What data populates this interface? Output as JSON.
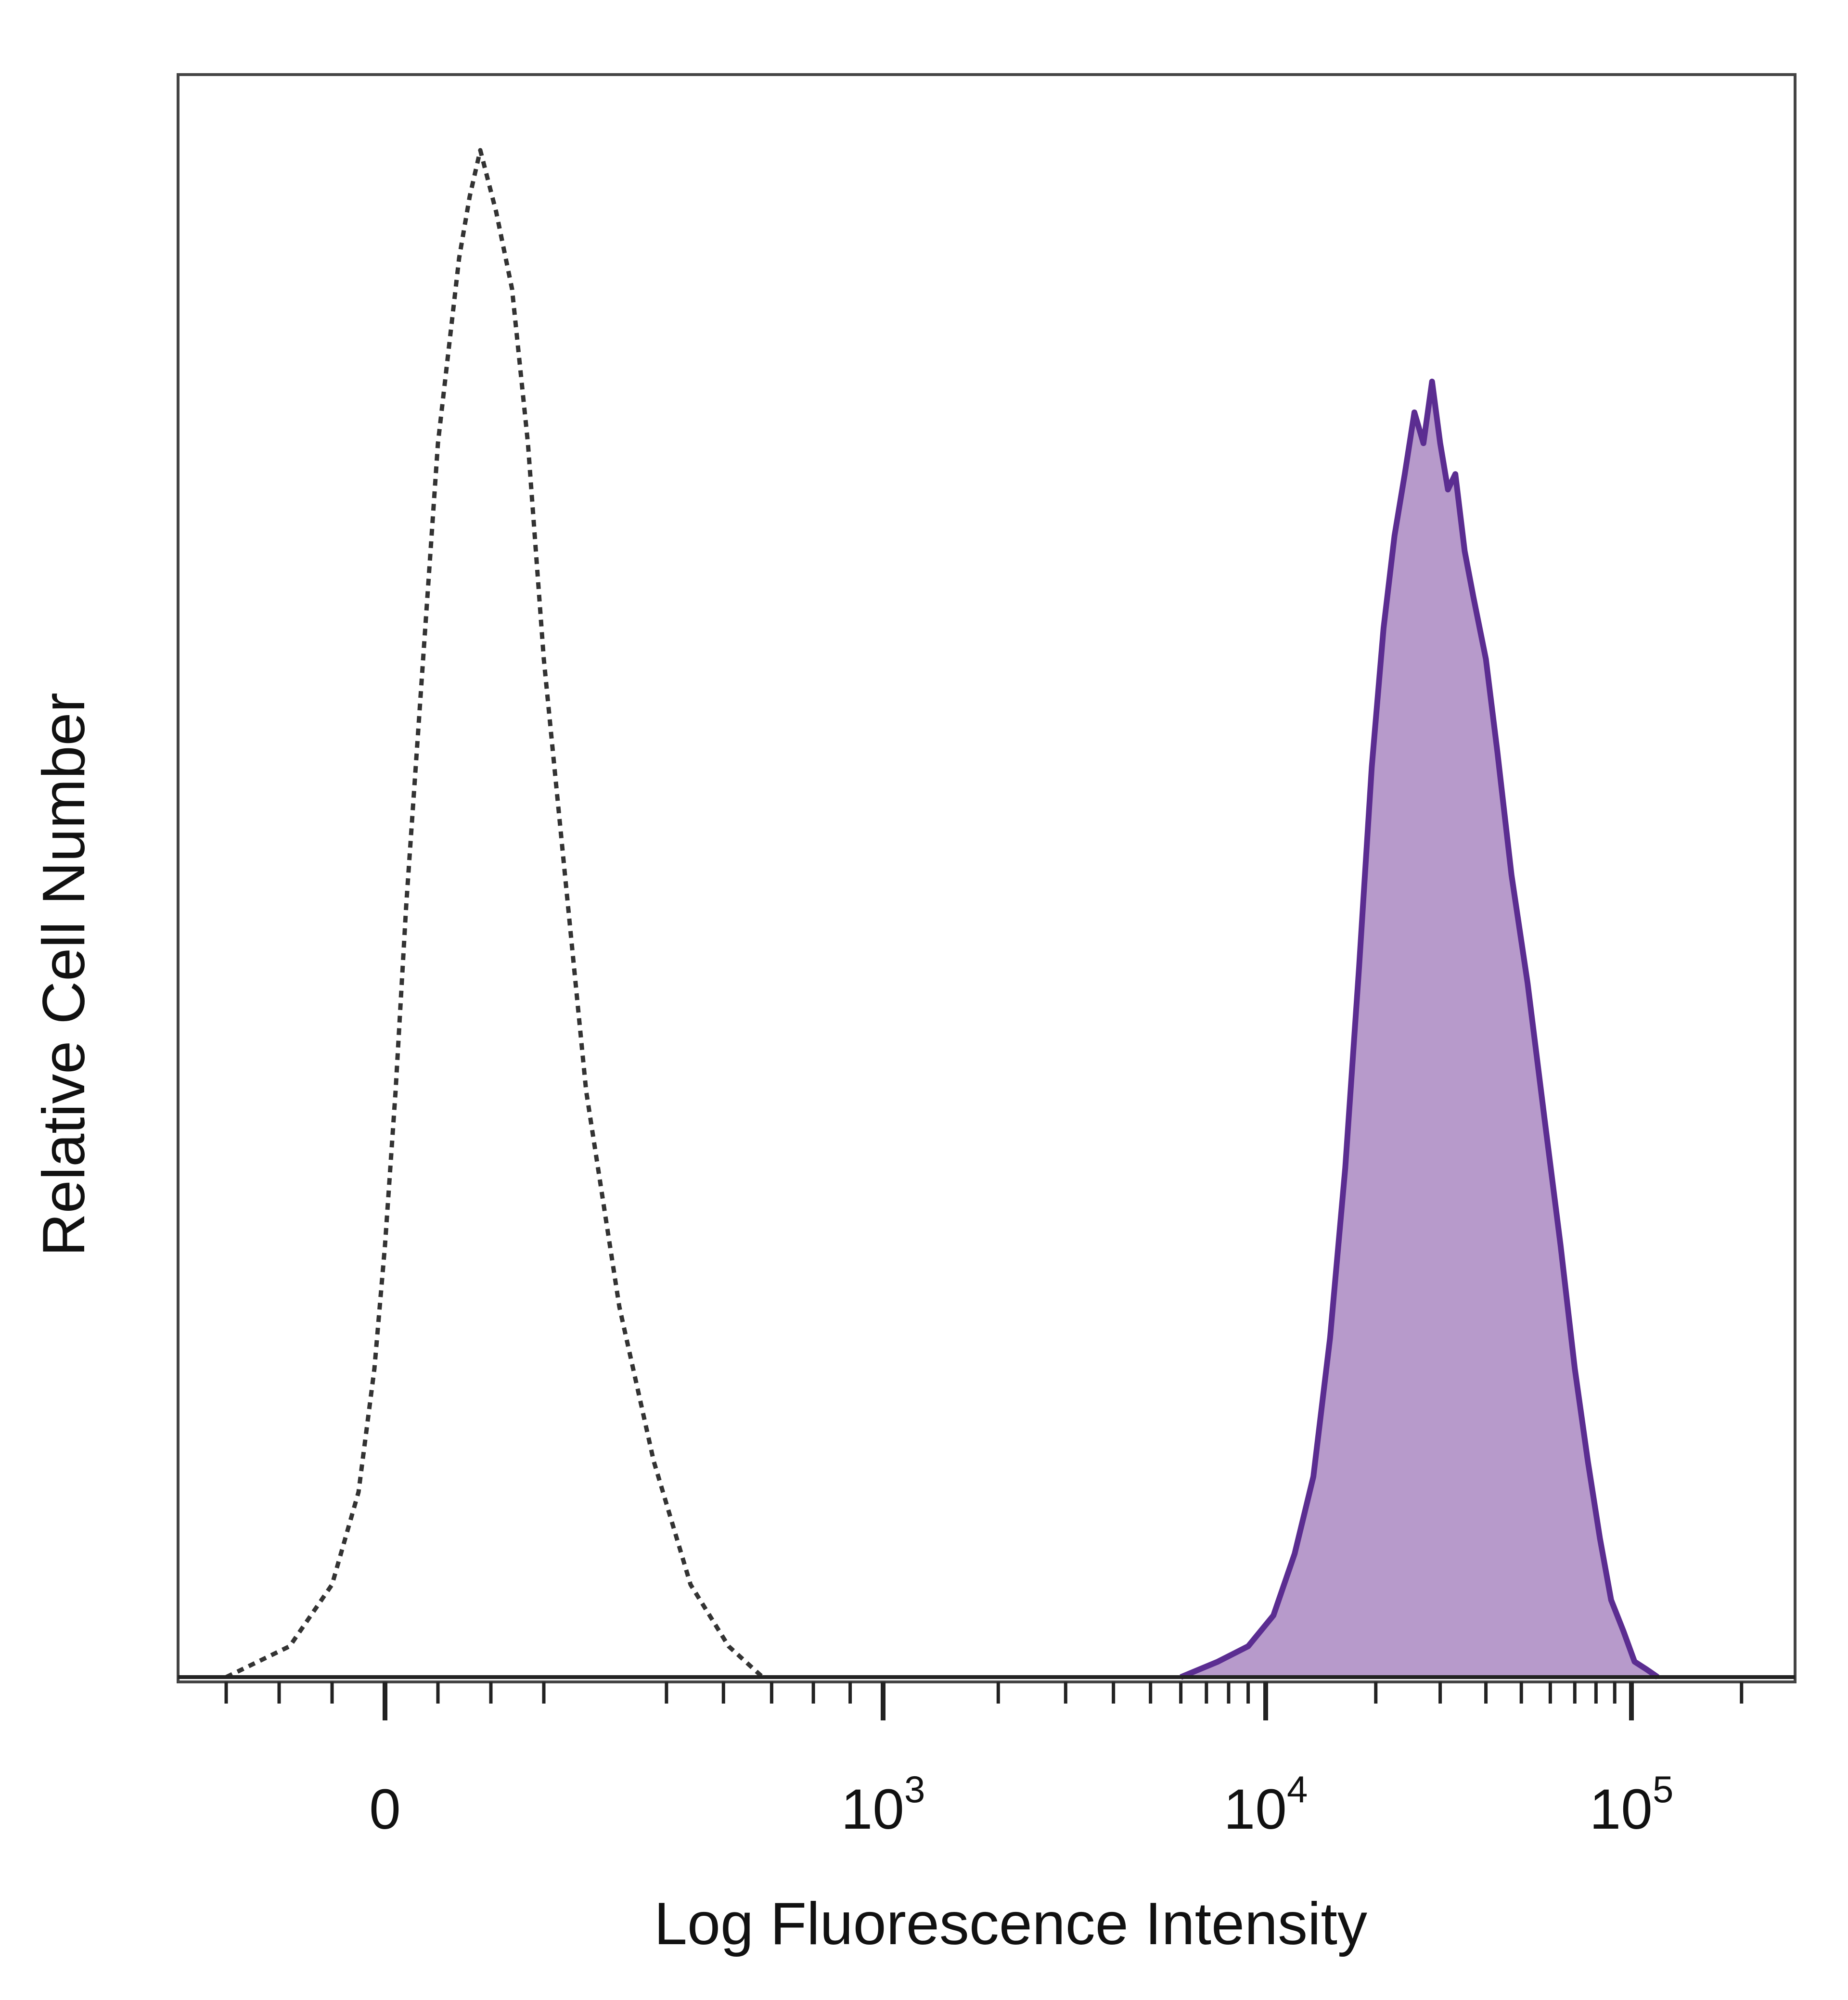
{
  "chart_data": {
    "type": "area",
    "title": "",
    "xlabel": "Log Fluorescence Intensity",
    "ylabel": "Relative Cell Number",
    "x_scale": "biexponential",
    "x_ticks": [
      {
        "value": 0,
        "base": "0",
        "exp": ""
      },
      {
        "value": 1000,
        "base": "10",
        "exp": "3"
      },
      {
        "value": 10000,
        "base": "10",
        "exp": "4"
      },
      {
        "value": 100000,
        "base": "10",
        "exp": "5"
      }
    ],
    "ylim": [
      0,
      100
    ],
    "grid": false,
    "legend": "none",
    "series": [
      {
        "style": "dotted-outline",
        "color": "#333333",
        "x": [
          -300,
          -180,
          -100,
          -50,
          -20,
          0,
          20,
          40,
          60,
          80,
          100,
          120,
          140,
          160,
          180,
          210,
          240,
          270,
          300,
          340,
          380,
          430,
          480,
          540,
          610,
          680
        ],
        "y": [
          0,
          2,
          6,
          12,
          20,
          28,
          38,
          50,
          60,
          70,
          80,
          86,
          92,
          96,
          99,
          95,
          90,
          80,
          66,
          52,
          38,
          24,
          14,
          6,
          2,
          0
        ]
      },
      {
        "style": "filled",
        "color": "#5b2d91",
        "fill": "#b79acb",
        "x": [
          6000,
          7500,
          9000,
          10500,
          12000,
          13500,
          15000,
          16500,
          18000,
          19500,
          21000,
          22500,
          24000,
          25500,
          27000,
          28500,
          30000,
          31500,
          33000,
          35000,
          37000,
          40000,
          43000,
          47000,
          52000,
          58000,
          64000,
          70000,
          76000,
          82000,
          88000,
          95000,
          102000,
          110000,
          118000
        ],
        "y": [
          0,
          1,
          2,
          4,
          8,
          13,
          22,
          33,
          46,
          59,
          68,
          74,
          78,
          82,
          80,
          84,
          80,
          77,
          78,
          73,
          70,
          66,
          60,
          52,
          45,
          36,
          28,
          20,
          14,
          9,
          5,
          3,
          1,
          0.5,
          0
        ]
      }
    ]
  }
}
